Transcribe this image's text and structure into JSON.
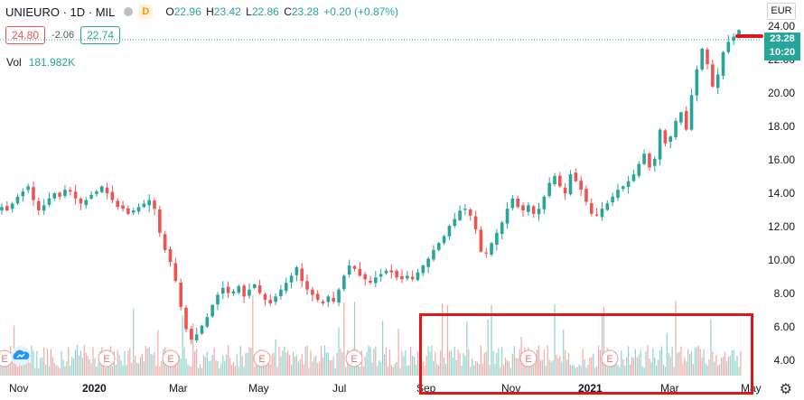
{
  "symbol": {
    "name": "UNIEURO",
    "interval": "1D",
    "exchange": "MIL",
    "badge": "D"
  },
  "ohlc": {
    "o_label": "O",
    "o": "22.96",
    "h_label": "H",
    "h": "23.42",
    "l_label": "L",
    "l": "22.86",
    "c_label": "C",
    "c": "23.28",
    "change": "+0.20 (+0.87%)"
  },
  "trade": {
    "sell": "24.80",
    "spread": "-2.06",
    "buy": "22.74"
  },
  "volume": {
    "label": "Vol",
    "value": "181.982K"
  },
  "currency": "EUR",
  "last_price": {
    "value": "23.28",
    "countdown": "10:20"
  },
  "colors": {
    "up": "#26a69a",
    "down": "#ef5350",
    "highlight": "#e0161b",
    "badge_bg": "#26a69a"
  },
  "icons": [
    "settings-gear-icon",
    "cloud-weather-icon",
    "earnings-e-icon"
  ],
  "chart_data": {
    "type": "candlestick",
    "ylim": [
      3.2,
      24.4
    ],
    "y_ticks": [
      "24.00",
      "22.00",
      "20.00",
      "18.00",
      "16.00",
      "14.00",
      "12.00",
      "10.00",
      "8.00",
      "6.00",
      "4.00"
    ],
    "x_ticks": [
      "Nov",
      "2020",
      "Mar",
      "May",
      "Jul",
      "Sep",
      "Nov",
      "2021",
      "Mar",
      "May"
    ],
    "earnings_markers": [
      "E",
      "E",
      "E",
      "E",
      "E",
      "E",
      "E"
    ],
    "close_series": [
      13.0,
      12.8,
      13.2,
      13.6,
      13.9,
      14.2,
      13.4,
      12.8,
      13.1,
      13.5,
      13.8,
      13.6,
      14.0,
      13.9,
      13.5,
      13.2,
      13.4,
      13.7,
      13.9,
      14.2,
      13.8,
      13.4,
      13.0,
      12.9,
      12.6,
      12.8,
      13.0,
      13.2,
      13.4,
      12.9,
      11.5,
      10.5,
      9.8,
      8.7,
      7.2,
      5.9,
      5.3,
      5.6,
      6.1,
      6.6,
      7.3,
      7.9,
      8.3,
      8.0,
      8.1,
      8.4,
      7.8,
      8.2,
      8.5,
      8.0,
      7.6,
      7.4,
      7.8,
      8.2,
      8.6,
      9.0,
      9.5,
      8.7,
      8.2,
      7.9,
      7.6,
      7.4,
      7.8,
      7.5,
      8.2,
      9.0,
      9.6,
      9.4,
      9.0,
      8.8,
      8.6,
      8.9,
      9.1,
      9.3,
      9.2,
      8.9,
      8.8,
      9.0,
      8.8,
      9.2,
      9.6,
      10.0,
      10.5,
      10.9,
      11.3,
      11.9,
      12.3,
      12.8,
      12.9,
      12.5,
      11.7,
      10.4,
      10.3,
      10.9,
      11.5,
      12.1,
      12.9,
      13.5,
      13.0,
      12.8,
      13.1,
      12.6,
      12.9,
      13.6,
      14.4,
      14.8,
      14.2,
      13.8,
      14.9,
      14.5,
      14.0,
      13.3,
      12.6,
      12.5,
      12.9,
      13.2,
      13.6,
      14.0,
      14.2,
      14.5,
      14.9,
      15.5,
      16.1,
      15.3,
      15.8,
      17.5,
      16.7,
      17.1,
      18.0,
      18.5,
      17.5,
      19.5,
      21.0,
      22.2,
      21.3,
      20.0,
      20.7,
      22.0,
      22.6,
      22.9,
      23.28
    ]
  }
}
